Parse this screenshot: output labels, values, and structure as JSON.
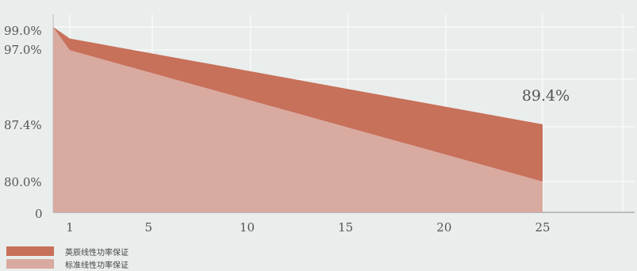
{
  "chart_data": {
    "type": "area",
    "x": [
      0,
      1,
      25
    ],
    "series": [
      {
        "name": "英辰线性功率保证",
        "values": [
          100,
          98.5,
          87.4
        ],
        "color": "#c7705a"
      },
      {
        "name": "标准线性功率保证",
        "values": [
          100,
          97.0,
          80.0
        ],
        "color": "#d9aaa0"
      }
    ],
    "xticks": [
      1,
      5,
      10,
      15,
      20,
      25
    ],
    "yticks": [
      {
        "value": 0,
        "label": "0"
      },
      {
        "value": 80.0,
        "label": "80.0%"
      },
      {
        "value": 87.4,
        "label": "87.4%"
      },
      {
        "value": 97.0,
        "label": "97.0%"
      },
      {
        "value": 99.0,
        "label": "99.0%"
      }
    ],
    "annotation": "89.4%",
    "grid": true,
    "legend_position": "bottom-left"
  }
}
